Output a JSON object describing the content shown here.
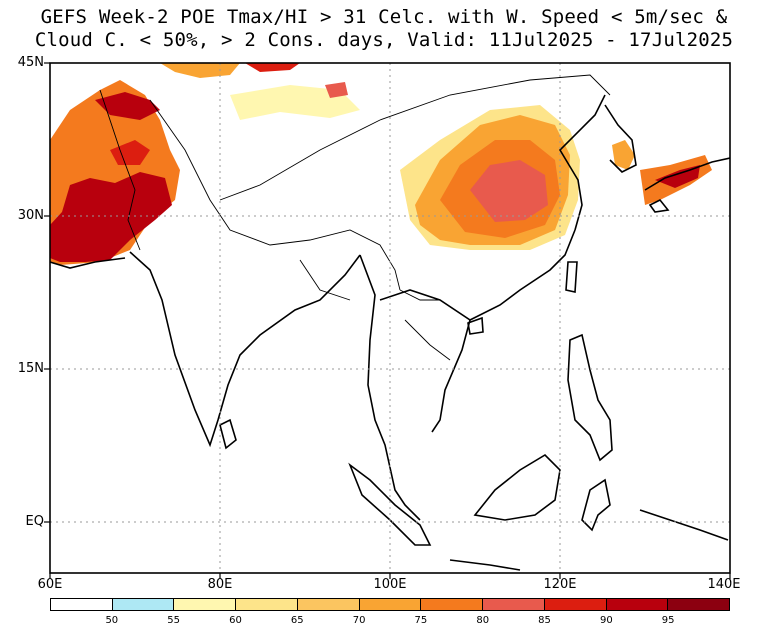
{
  "title": {
    "line1": "GEFS Week-2 POE Tmax/HI > 31 Celc. with W. Speed < 5m/sec &",
    "line2": "Cloud C. < 50%, > 2 Cons. days, Valid: 11Jul2025 - 17Jul2025"
  },
  "axes": {
    "lat_labels": [
      "45N",
      "30N",
      "15N",
      "EQ"
    ],
    "lon_labels": [
      "60E",
      "80E",
      "100E",
      "120E",
      "140E"
    ]
  },
  "colorbar": {
    "colors": [
      "#ffffff",
      "#aee8f4",
      "#fff7b0",
      "#fde48a",
      "#fbc560",
      "#f9a433",
      "#f47a1e",
      "#e85a4d",
      "#dc1e10",
      "#b8000d",
      "#8c0010"
    ],
    "ticks": [
      "50",
      "55",
      "60",
      "65",
      "70",
      "75",
      "80",
      "85",
      "90",
      "95"
    ]
  }
}
